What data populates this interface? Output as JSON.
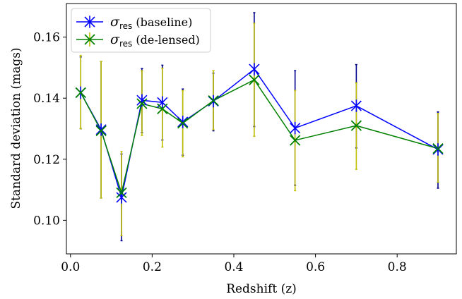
{
  "chart_data": {
    "type": "line",
    "title": "",
    "xlabel": "Redshift (z)",
    "ylabel": "Standard deviation (mags)",
    "xlim": [
      -0.01,
      0.945
    ],
    "ylim": [
      0.089,
      0.171
    ],
    "xticks": [
      0.0,
      0.2,
      0.4,
      0.6,
      0.8
    ],
    "xtick_labels": [
      "0.0",
      "0.2",
      "0.4",
      "0.6",
      "0.8"
    ],
    "yticks": [
      0.1,
      0.12,
      0.14,
      0.16
    ],
    "ytick_labels": [
      "0.10",
      "0.12",
      "0.14",
      "0.16"
    ],
    "grid": false,
    "legend_position": "top-left",
    "x": [
      0.025,
      0.075,
      0.125,
      0.175,
      0.225,
      0.275,
      0.35,
      0.45,
      0.55,
      0.7,
      0.9
    ],
    "series": [
      {
        "legend_symbol": "σ",
        "legend_subscript": "res",
        "legend_suffix": "(baseline)",
        "color": "#0000ff",
        "errorbar_color": "#00008b",
        "marker": "x-star",
        "values": [
          0.1418,
          0.1297,
          0.1075,
          0.1393,
          0.1386,
          0.1322,
          0.139,
          0.1495,
          0.1302,
          0.1375,
          0.1232
        ],
        "err_low": [
          0.13,
          0.1073,
          0.0933,
          0.1287,
          0.1263,
          0.1213,
          0.1293,
          0.1307,
          0.1115,
          0.1237,
          0.1105
        ],
        "err_high": [
          0.1535,
          0.152,
          0.1217,
          0.1497,
          0.1508,
          0.143,
          0.1482,
          0.168,
          0.149,
          0.151,
          0.1355
        ]
      },
      {
        "legend_symbol": "σ",
        "legend_subscript": "res",
        "legend_suffix": "(de-lensed)",
        "color": "#008000",
        "errorbar_color": "#bfbf00",
        "marker": "x",
        "values": [
          0.1418,
          0.1293,
          0.109,
          0.1382,
          0.1365,
          0.1318,
          0.1392,
          0.146,
          0.1262,
          0.131,
          0.1235
        ],
        "err_low": [
          0.13,
          0.1073,
          0.095,
          0.1278,
          0.124,
          0.1208,
          0.1297,
          0.1275,
          0.1097,
          0.1167,
          0.1125
        ],
        "err_high": [
          0.154,
          0.152,
          0.1225,
          0.149,
          0.1498,
          0.1425,
          0.149,
          0.1645,
          0.1425,
          0.145,
          0.135
        ]
      }
    ]
  }
}
